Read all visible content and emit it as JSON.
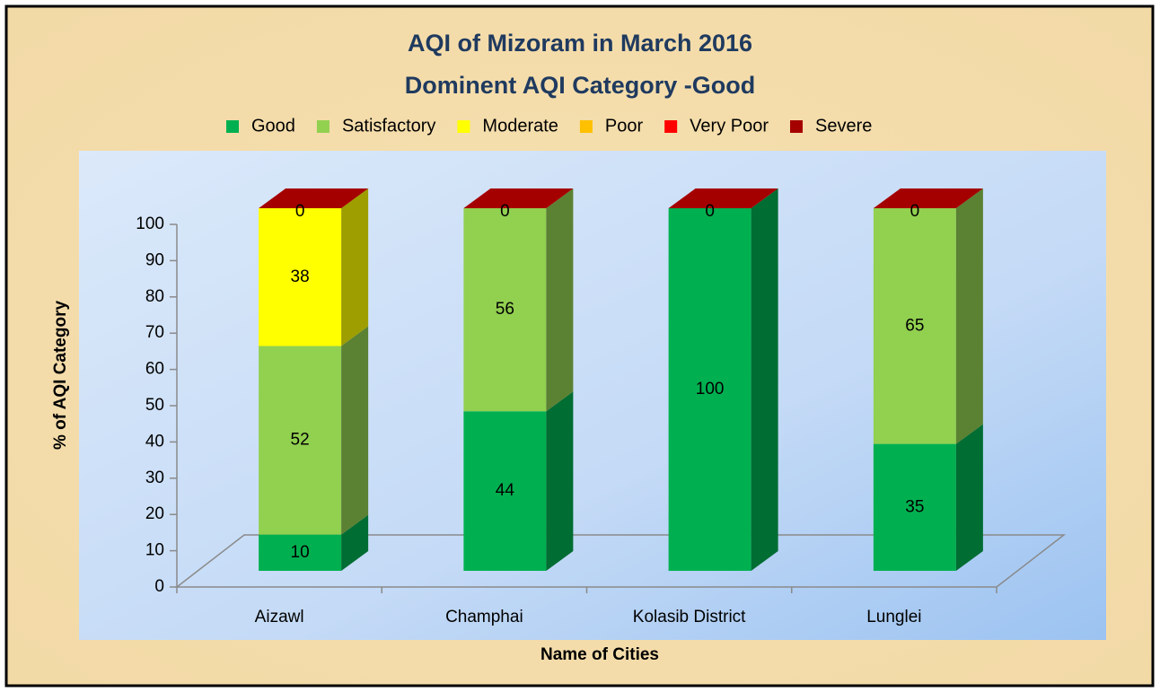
{
  "chart_data": {
    "type": "bar3d_stacked",
    "title": "AQI of Mizoram in March 2016",
    "subtitle": "Dominent AQI Category -Good",
    "x_label": "Name of Cities",
    "y_label": "% of AQI Category",
    "categories": [
      "Aizawl",
      "Champhai",
      "Kolasib District",
      "Lunglei"
    ],
    "series": [
      {
        "name": "Good",
        "color": "#00b050",
        "values": [
          10,
          44,
          100,
          35
        ]
      },
      {
        "name": "Satisfactory",
        "color": "#92d050",
        "values": [
          52,
          56,
          0,
          65
        ]
      },
      {
        "name": "Moderate",
        "color": "#ffff00",
        "values": [
          38,
          0,
          0,
          0
        ]
      },
      {
        "name": "Poor",
        "color": "#ffc000",
        "values": [
          0,
          0,
          0,
          0
        ]
      },
      {
        "name": "Very Poor",
        "color": "#ff0000",
        "values": [
          0,
          0,
          0,
          0
        ]
      },
      {
        "name": "Severe",
        "color": "#a50000",
        "values": [
          0,
          0,
          0,
          0
        ]
      }
    ],
    "ylim": [
      0,
      100
    ],
    "yticks": [
      0,
      10,
      20,
      30,
      40,
      50,
      60,
      70,
      80,
      90,
      100
    ],
    "legend": "top"
  }
}
